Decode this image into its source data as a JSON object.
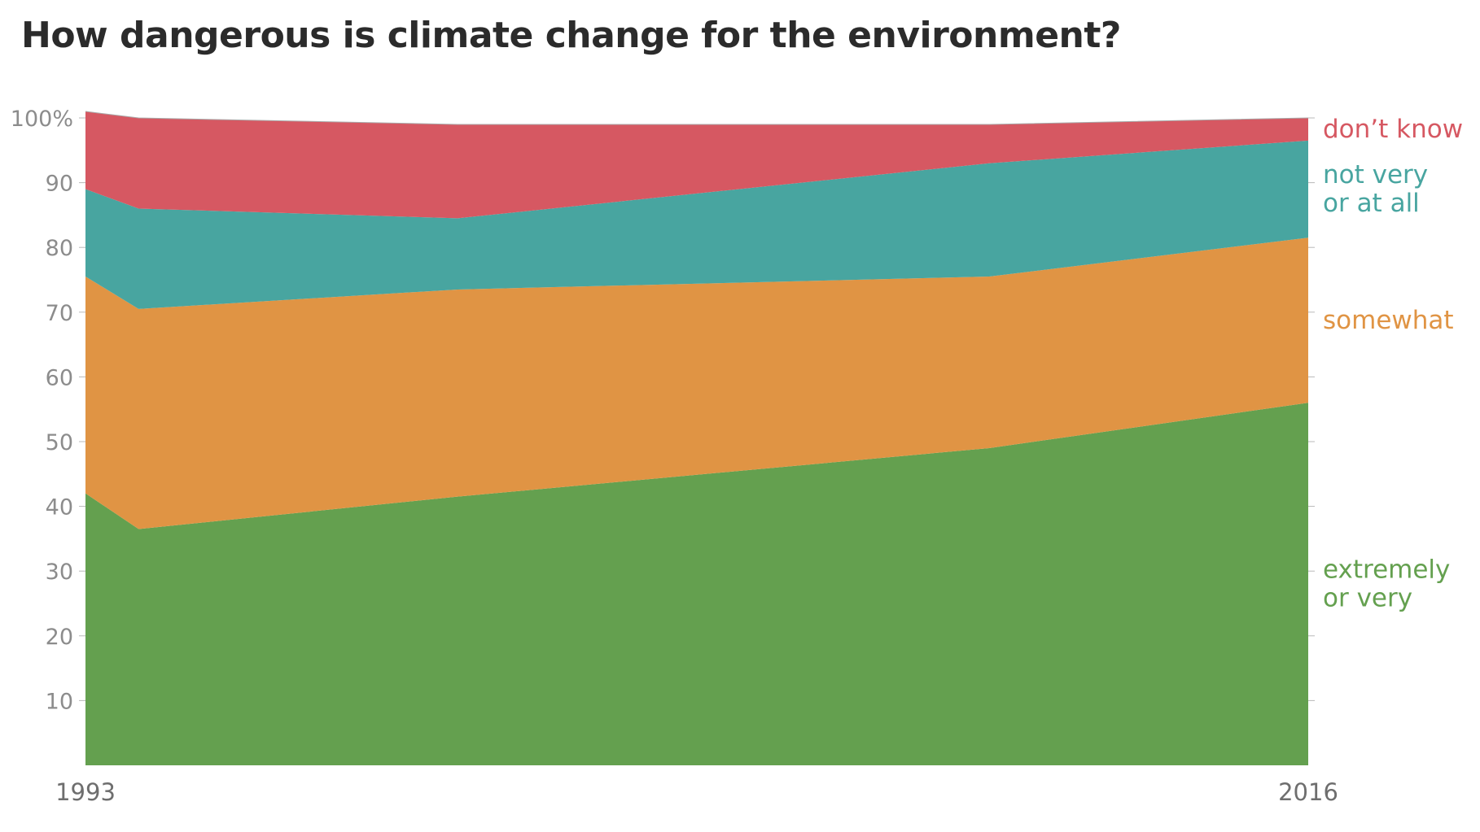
{
  "chart_data": {
    "type": "area",
    "stacked": true,
    "title": "How dangerous is climate change for the environment?",
    "x": [
      1993,
      1994,
      2000,
      2010,
      2016
    ],
    "x_tick_labels": [
      "1993",
      "2016"
    ],
    "y_tick_labels": [
      "100%",
      "90",
      "80",
      "70",
      "60",
      "50",
      "40",
      "30",
      "20",
      "10"
    ],
    "ylim": [
      0,
      100
    ],
    "grid": false,
    "legend": "direct labels at right",
    "series": [
      {
        "name": "extremely or very",
        "label_lines": [
          "extremely",
          "or very"
        ],
        "color": "#64a04f",
        "values": [
          42,
          36.5,
          41.5,
          49,
          56
        ]
      },
      {
        "name": "somewhat",
        "label_lines": [
          "somewhat"
        ],
        "color": "#e09444",
        "values": [
          33.5,
          34,
          32,
          26.5,
          25.5
        ]
      },
      {
        "name": "not very or at all",
        "label_lines": [
          "not very",
          "or at all"
        ],
        "color": "#48a5a0",
        "values": [
          13.5,
          15.5,
          11,
          17.5,
          15
        ]
      },
      {
        "name": "don’t know",
        "label_lines": [
          "don’t know"
        ],
        "color": "#d65862",
        "values": [
          12,
          14,
          14.5,
          6,
          3.5
        ]
      }
    ]
  }
}
